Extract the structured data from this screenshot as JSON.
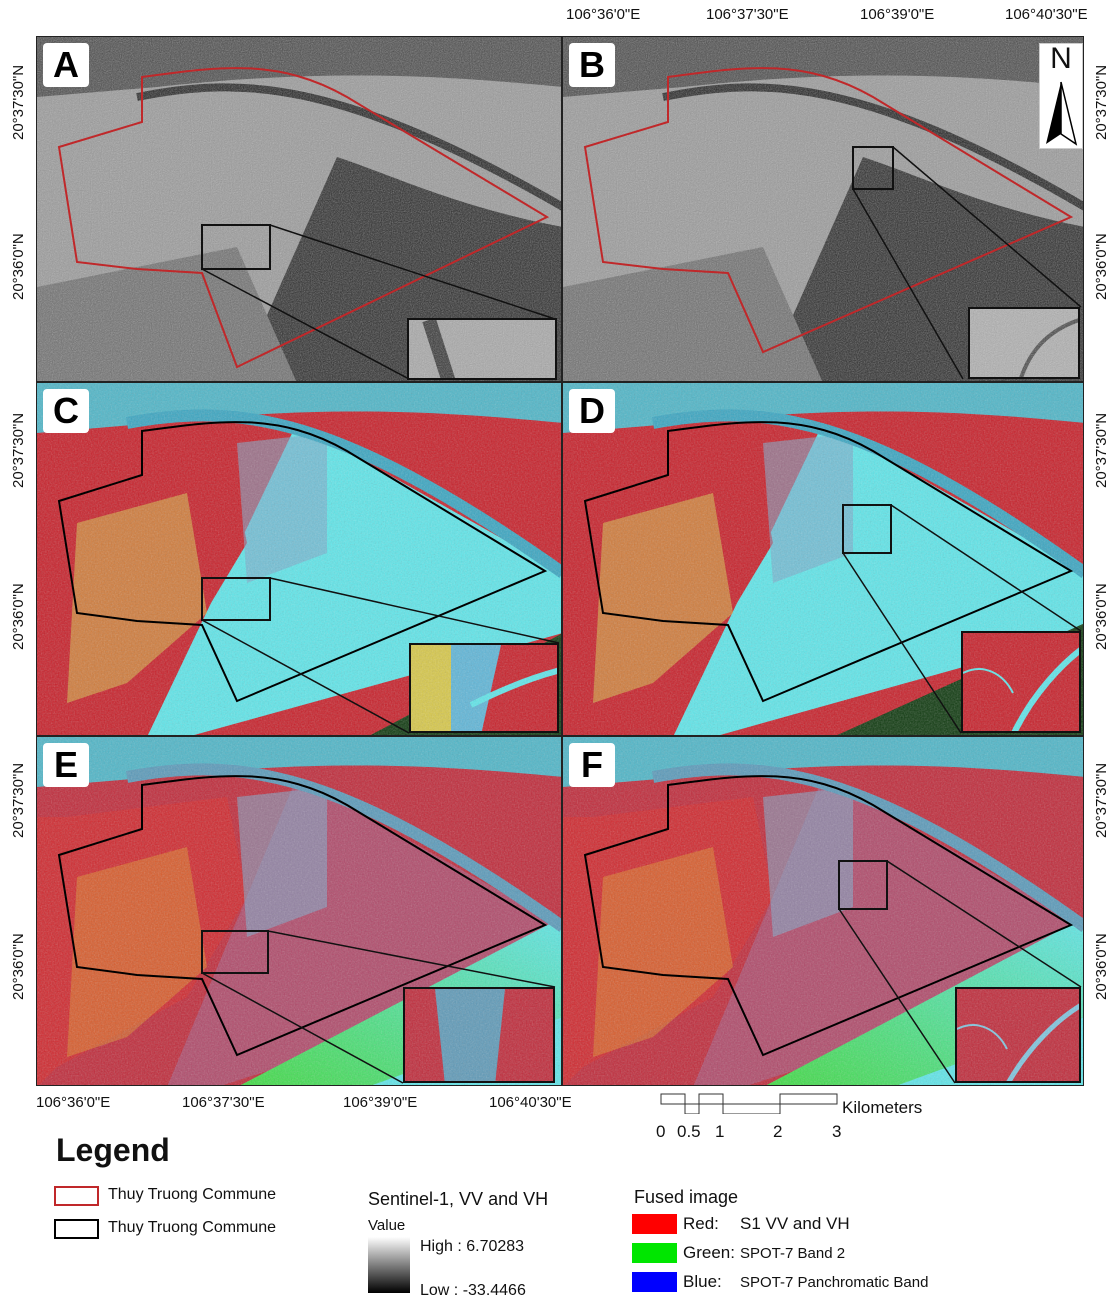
{
  "panels": [
    "A",
    "B",
    "C",
    "D",
    "E",
    "F"
  ],
  "coords": {
    "top_lon": [
      "106°36'0\"E",
      "106°37'30\"E",
      "106°39'0\"E",
      "106°40'30\"E"
    ],
    "bottom_lon": [
      "106°36'0\"E",
      "106°37'30\"E",
      "106°39'0\"E",
      "106°40'30\"E"
    ],
    "left_lat_ab": [
      "20°37'30\"N",
      "20°36'0\"N"
    ],
    "right_lat_ab": [
      "20°37'30\"N",
      "20°36'0\"N"
    ],
    "left_lat_cd": [
      "20°37'30\"N",
      "20°36'0\"N"
    ],
    "right_lat_cd": [
      "20°37'30\"N",
      "20°36'0\"N"
    ],
    "left_lat_ef": [
      "20°37'30\"N",
      "20°36'0\"N"
    ],
    "right_lat_ef": [
      "20°37'30\"N",
      "20°36'0\"N"
    ]
  },
  "north_arrow": {
    "label": "N",
    "icon": "north-arrow-icon"
  },
  "scale_bar": {
    "ticks": [
      "0",
      "0.5",
      "1",
      "2",
      "3"
    ],
    "unit": "Kilometers"
  },
  "legend": {
    "title": "Legend",
    "boundary_red": "Thuy Truong Commune",
    "boundary_black": "Thuy Truong Commune",
    "s1_title": "Sentinel-1, VV and VH",
    "value_label": "Value",
    "high": "High : 6.70283",
    "low": "Low : -33.4466",
    "fused_title": "Fused image",
    "fused": [
      {
        "channel": "Red:",
        "desc": "S1 VV and VH",
        "color": "#ff0000"
      },
      {
        "channel": "Green:",
        "desc": "SPOT-7  Band 2",
        "color": "#00e600"
      },
      {
        "channel": "Blue:",
        "desc": "SPOT-7  Panchromatic Band",
        "color": "#0000ff"
      }
    ]
  },
  "colors": {
    "boundary_red": "#c0282a",
    "boundary_black": "#000000",
    "water_cyan": "#5fe6ea",
    "vegetation_red": "#c8202a"
  }
}
